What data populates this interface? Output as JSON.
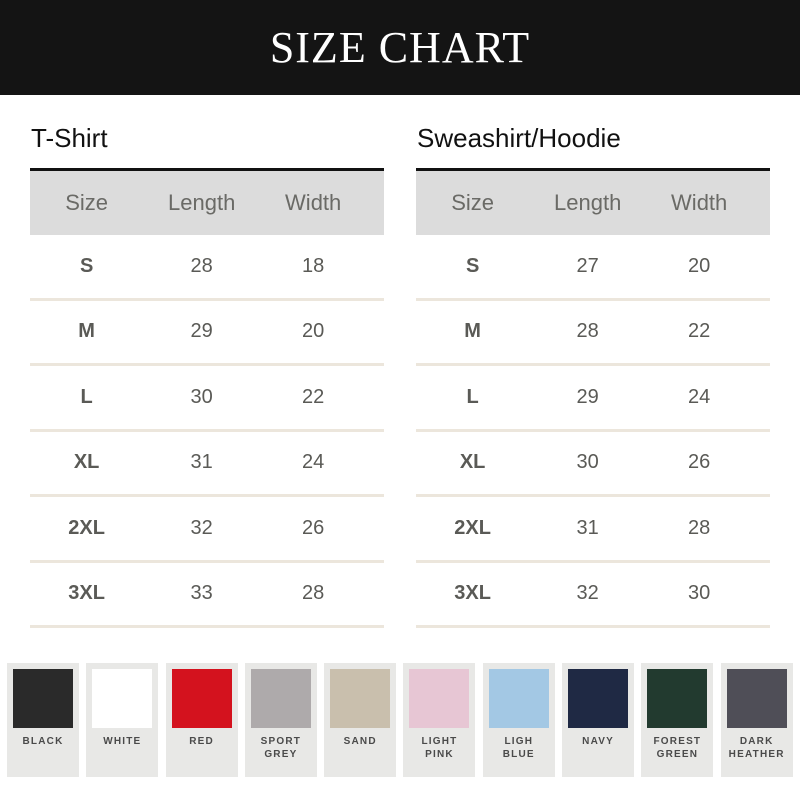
{
  "header": {
    "title": "SIZE CHART"
  },
  "columns": [
    "Size",
    "Length",
    "Width"
  ],
  "tables": [
    {
      "title": "T-Shirt",
      "rows": [
        [
          "S",
          "28",
          "18"
        ],
        [
          "M",
          "29",
          "20"
        ],
        [
          "L",
          "30",
          "22"
        ],
        [
          "XL",
          "31",
          "24"
        ],
        [
          "2XL",
          "32",
          "26"
        ],
        [
          "3XL",
          "33",
          "28"
        ]
      ]
    },
    {
      "title": "Sweashirt/Hoodie",
      "rows": [
        [
          "S",
          "27",
          "20"
        ],
        [
          "M",
          "28",
          "22"
        ],
        [
          "L",
          "29",
          "24"
        ],
        [
          "XL",
          "30",
          "26"
        ],
        [
          "2XL",
          "31",
          "28"
        ],
        [
          "3XL",
          "32",
          "30"
        ]
      ]
    }
  ],
  "colors": [
    {
      "label": "BLACK",
      "hex": "#2a2a2a"
    },
    {
      "label": "WHITE",
      "hex": "#ffffff"
    },
    {
      "label": "RED",
      "hex": "#d4121e"
    },
    {
      "label": "SPORT GREY",
      "hex": "#aeaaab"
    },
    {
      "label": "SAND",
      "hex": "#c9bfad"
    },
    {
      "label": "LIGHT PINK",
      "hex": "#e7c6d4"
    },
    {
      "label": "LIGH BLUE",
      "hex": "#a3c8e4"
    },
    {
      "label": "NAVY",
      "hex": "#1f2944"
    },
    {
      "label": "FOREST GREEN",
      "hex": "#223a2f"
    },
    {
      "label": "DARK HEATHER",
      "hex": "#4f4e57"
    }
  ]
}
